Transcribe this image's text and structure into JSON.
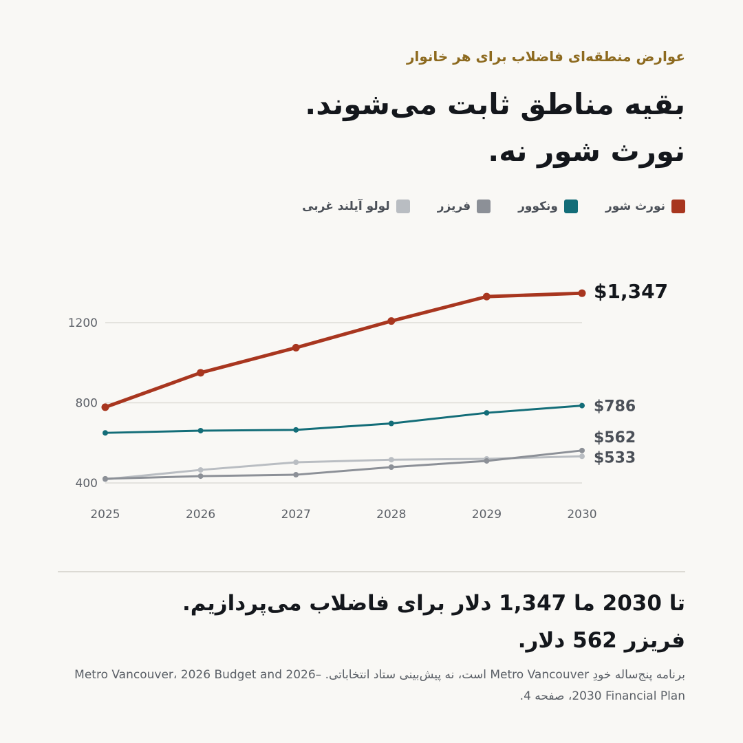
{
  "header": {
    "kicker": "عوارض منطقه‌ای فاضلاب برای هر خانوار",
    "headline_line1": "بقیه مناطق ثابت می‌شوند.",
    "headline_line2": "نورث شور نه."
  },
  "legend": [
    {
      "label": "نورث شور",
      "color": "#a8361f"
    },
    {
      "label": "ونکوور",
      "color": "#136d78"
    },
    {
      "label": "فریزر",
      "color": "#8c9097"
    },
    {
      "label": "لولو آیلند غربی",
      "color": "#b9bdc2"
    }
  ],
  "chart_data": {
    "type": "line",
    "x": [
      2025,
      2026,
      2027,
      2028,
      2029,
      2030
    ],
    "ylim": [
      400,
      1400
    ],
    "yticks": [
      400,
      800,
      1200
    ],
    "grid": true,
    "series": [
      {
        "name": "نورث شور",
        "color": "#a8361f",
        "values": [
          778,
          950,
          1075,
          1208,
          1330,
          1347
        ],
        "end_label": "$1,347"
      },
      {
        "name": "ونکوور",
        "color": "#136d78",
        "values": [
          650,
          661,
          665,
          697,
          750,
          786
        ],
        "end_label": "$786"
      },
      {
        "name": "فریزر",
        "color": "#8c9097",
        "values": [
          421,
          434,
          441,
          479,
          510,
          562
        ],
        "end_label": "$562"
      },
      {
        "name": "لولو آیلند غربی",
        "color": "#b9bdc2",
        "values": [
          418,
          465,
          503,
          516,
          520,
          533
        ],
        "end_label": "$533"
      }
    ]
  },
  "footer": {
    "conclusion_line1": "تا 2030 ما 1,347 دلار برای فاضلاب می‌پردازیم.",
    "conclusion_line2": "فریزر 562 دلار.",
    "source": "برنامه پنج‌ساله خودِ Metro Vancouver است، نه پیش‌بینی ستاد انتخاباتی. Metro Vancouver، 2026 Budget and 2026–2030 Financial Plan، صفحه 4."
  }
}
